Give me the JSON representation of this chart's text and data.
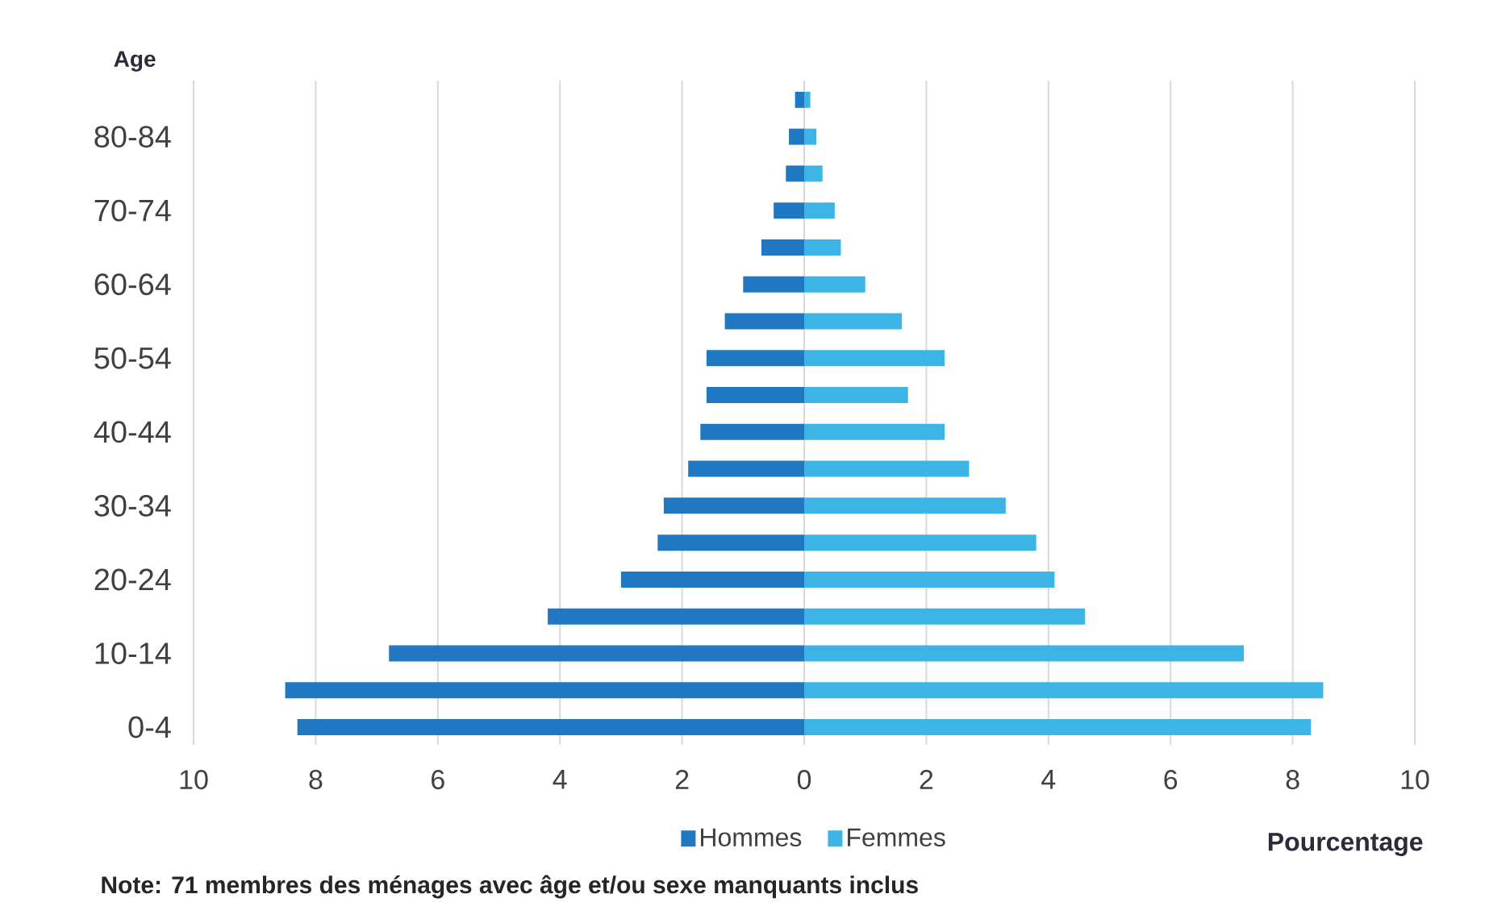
{
  "chart_data": {
    "type": "bar",
    "orientation": "horizontal",
    "stacked": true,
    "ylabel": "Age",
    "xlabel": "Pourcentage",
    "annotations": [
      "Note: 71 membres des ménages avec âge et/ou sexe manquants inclus"
    ],
    "categories": [
      null,
      "80-84",
      null,
      "70-74",
      null,
      "60-64",
      null,
      "50-54",
      null,
      "40-44",
      null,
      "30-34",
      null,
      "20-24",
      null,
      "10-14",
      null,
      "0-4"
    ],
    "series": [
      {
        "name": "Hommes",
        "color": "#1f78c1",
        "values": [
          -0.15,
          -0.25,
          -0.3,
          -0.5,
          -0.7,
          -1.0,
          -1.3,
          -1.6,
          -1.6,
          -1.7,
          -1.9,
          -2.3,
          -2.4,
          -3.0,
          -4.2,
          -6.8,
          -8.5,
          -8.3
        ]
      },
      {
        "name": "Femmes",
        "color": "#3cb4e5",
        "values": [
          0.1,
          0.2,
          0.3,
          0.5,
          0.6,
          1.0,
          1.6,
          2.3,
          1.7,
          2.3,
          2.7,
          3.3,
          3.8,
          4.1,
          4.6,
          7.2,
          8.5,
          8.3
        ]
      }
    ],
    "xlim": [
      -10,
      10
    ],
    "xticks": [
      {
        "value": -10,
        "label": "10"
      },
      {
        "value": -8,
        "label": "8"
      },
      {
        "value": -6,
        "label": "6"
      },
      {
        "value": -4,
        "label": "4"
      },
      {
        "value": -2,
        "label": "2"
      },
      0,
      2,
      4,
      6,
      8,
      10
    ],
    "grid": "x",
    "legend": "bottom"
  }
}
